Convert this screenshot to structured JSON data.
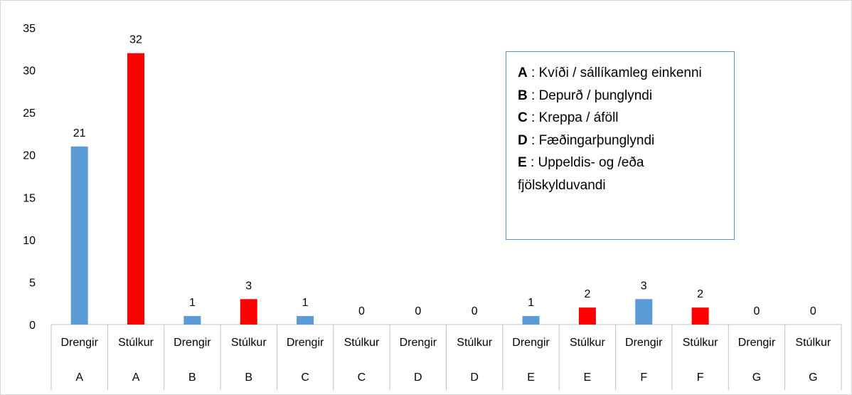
{
  "chart_data": {
    "type": "bar",
    "categories": [
      {
        "sub": "Drengir",
        "group": "A"
      },
      {
        "sub": "Stúlkur",
        "group": "A"
      },
      {
        "sub": "Drengir",
        "group": "B"
      },
      {
        "sub": "Stúlkur",
        "group": "B"
      },
      {
        "sub": "Drengir",
        "group": "C"
      },
      {
        "sub": "Stúlkur",
        "group": "C"
      },
      {
        "sub": "Drengir",
        "group": "D"
      },
      {
        "sub": "Stúlkur",
        "group": "D"
      },
      {
        "sub": "Drengir",
        "group": "E"
      },
      {
        "sub": "Stúlkur",
        "group": "E"
      },
      {
        "sub": "Drengir",
        "group": "F"
      },
      {
        "sub": "Stúlkur",
        "group": "F"
      },
      {
        "sub": "Drengir",
        "group": "G"
      },
      {
        "sub": "Stúlkur",
        "group": "G"
      }
    ],
    "values": [
      21,
      32,
      1,
      3,
      1,
      0,
      0,
      0,
      1,
      2,
      3,
      2,
      0,
      0
    ],
    "bar_colors": {
      "Drengir": "#5b9bd5",
      "Stúlkur": "#ff0000"
    },
    "ylim": [
      0,
      35
    ],
    "yticks": [
      0,
      5,
      10,
      15,
      20,
      25,
      30,
      35
    ],
    "grid": false,
    "legend": "top-right",
    "legend_text_box": [
      {
        "key": "A",
        "text": " : Kvíði / sállíkamleg einkenni"
      },
      {
        "key": "B",
        "text": " : Depurð / þunglyndi"
      },
      {
        "key": "C",
        "text": " : Kreppa / áföll"
      },
      {
        "key": "D",
        "text": " : Fæðingarþunglyndi"
      },
      {
        "key": "E",
        "text": " : Uppeldis- og /eða"
      },
      {
        "key": "",
        "text": "fjölskylduvandi"
      }
    ]
  }
}
